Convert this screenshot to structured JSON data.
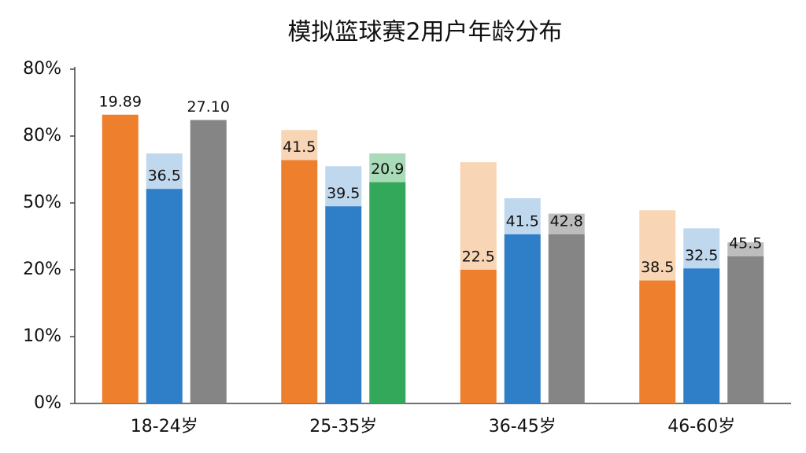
{
  "chart_data": {
    "type": "bar",
    "title": "模拟篮球赛2用户年龄分布",
    "categories": [
      "18-24岁",
      "25-35岁",
      "36-45岁",
      "46-60岁"
    ],
    "ylim": [
      0,
      5
    ],
    "yticks": [
      0,
      1,
      2,
      3,
      4,
      5
    ],
    "ytick_labels": [
      "0%",
      "10%",
      "20%",
      "50%",
      "80%",
      "80%"
    ],
    "bars": [
      {
        "colors": [
          "#ee7f2d",
          "#ee7f2d",
          "#ee7f2d",
          "#ee7f2d"
        ],
        "light_colors": [
          "#f8d5b4",
          "#f8d5b4",
          "#f8d5b4",
          "#f8d5b4"
        ],
        "values": [
          4.32,
          3.64,
          2.0,
          1.84
        ],
        "light_values": [
          0,
          0.45,
          1.61,
          1.05
        ],
        "labels": [
          "19.89",
          "41.5",
          "22.5",
          "38.5"
        ]
      },
      {
        "colors": [
          "#2f7fc8",
          "#2f7fc8",
          "#2f7fc8",
          "#2f7fc8"
        ],
        "light_colors": [
          "#c0d8ee",
          "#c0d8ee",
          "#c0d8ee",
          "#c0d8ee"
        ],
        "values": [
          3.21,
          2.95,
          2.53,
          2.02
        ],
        "light_values": [
          0.53,
          0.6,
          0.54,
          0.6
        ],
        "labels": [
          "36.5",
          "39.5",
          "41.5",
          "32.5"
        ]
      },
      {
        "colors": [
          "#858585",
          "#34a85a",
          "#858585",
          "#858585"
        ],
        "light_colors": [
          "#bdbdbd",
          "#a9dbb8",
          "#bdbdbd",
          "#bdbdbd"
        ],
        "values": [
          4.24,
          3.31,
          2.53,
          2.2
        ],
        "light_values": [
          0,
          0.43,
          0.31,
          0.21
        ],
        "labels": [
          "27.10",
          "20.9",
          "42.8",
          "45.5"
        ]
      }
    ]
  }
}
